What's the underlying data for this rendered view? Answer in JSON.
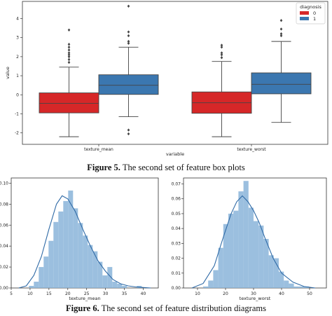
{
  "figures": [
    {
      "caption_label": "Figure 5.",
      "caption_text": "The second set of feature box plots",
      "chart_data": {
        "type": "boxplot",
        "title": "",
        "xlabel": "variable",
        "ylabel": "value",
        "ylim": [
          -2.6,
          4.9
        ],
        "yticks": [
          -2,
          -1,
          0,
          1,
          2,
          3,
          4
        ],
        "categories": [
          "texture_mean",
          "texture_worst"
        ],
        "legend": {
          "title": "diagnosis",
          "placement": "top-right",
          "entries": [
            "0",
            "1"
          ]
        },
        "series": [
          {
            "name": "0",
            "color": "#d62728",
            "boxes": [
              {
                "category": "texture_mean",
                "whisker_low": -2.2,
                "q1": -0.95,
                "median": -0.45,
                "q3": 0.1,
                "whisker_high": 1.45,
                "outliers": [
                  1.7,
                  1.85,
                  2.0,
                  2.1,
                  2.2,
                  2.35,
                  2.5,
                  2.65,
                  3.4
                ]
              },
              {
                "category": "texture_worst",
                "whisker_low": -2.2,
                "q1": -0.97,
                "median": -0.42,
                "q3": 0.15,
                "whisker_high": 1.75,
                "outliers": [
                  1.95,
                  2.1,
                  2.2,
                  2.5,
                  2.6
                ]
              }
            ]
          },
          {
            "name": "1",
            "color": "#3b77b0",
            "boxes": [
              {
                "category": "texture_mean",
                "whisker_low": -1.15,
                "q1": 0.02,
                "median": 0.5,
                "q3": 1.05,
                "whisker_high": 2.5,
                "outliers": [
                  -1.85,
                  -2.05,
                  2.7,
                  2.8,
                  3.1,
                  3.3,
                  4.65
                ]
              },
              {
                "category": "texture_worst",
                "whisker_low": -1.45,
                "q1": 0.05,
                "median": 0.55,
                "q3": 1.15,
                "whisker_high": 2.8,
                "outliers": [
                  3.1,
                  3.2,
                  3.45,
                  3.9
                ]
              }
            ]
          }
        ]
      }
    },
    {
      "caption_label": "Figure 6.",
      "caption_text": "The second set of feature distribution diagrams",
      "chart_data": [
        {
          "type": "bar",
          "title": "",
          "xlabel": "texture_mean",
          "ylabel": "",
          "color": "#8ab4d9",
          "xlim": [
            5,
            44
          ],
          "xticks": [
            5,
            10,
            15,
            20,
            25,
            30,
            35,
            40
          ],
          "ylim": [
            0,
            0.105
          ],
          "yticks": [
            0.0,
            0.02,
            0.04,
            0.06,
            0.08,
            0.1
          ],
          "ytick_labels": [
            "0.00",
            "0.02",
            "0.04",
            "0.06",
            "0.08",
            "0.10"
          ],
          "bin_edges": [
            9.7,
            11.0,
            12.3,
            13.6,
            14.9,
            16.2,
            17.5,
            18.8,
            20.1,
            21.4,
            22.7,
            24.0,
            25.3,
            26.6,
            27.9,
            29.2,
            30.5,
            31.8,
            33.1,
            34.4,
            35.7,
            37.0,
            38.3,
            39.6
          ],
          "density": [
            0.002,
            0.006,
            0.02,
            0.03,
            0.045,
            0.063,
            0.073,
            0.083,
            0.093,
            0.076,
            0.062,
            0.05,
            0.041,
            0.035,
            0.025,
            0.012,
            0.02,
            0.006,
            0.004,
            0.002,
            0.0,
            0.0,
            0.002
          ],
          "kde_x": [
            7,
            9,
            11,
            13,
            15,
            17,
            18.5,
            20,
            22,
            24,
            26,
            28,
            30,
            32,
            34,
            36,
            38,
            40,
            42
          ],
          "kde_y": [
            0.0,
            0.002,
            0.012,
            0.03,
            0.056,
            0.08,
            0.088,
            0.085,
            0.073,
            0.056,
            0.04,
            0.026,
            0.016,
            0.008,
            0.004,
            0.002,
            0.001,
            0.0005,
            0.0
          ]
        },
        {
          "type": "bar",
          "title": "",
          "xlabel": "texture_worst",
          "ylabel": "",
          "color": "#8ab4d9",
          "xlim": [
            5,
            56
          ],
          "xticks": [
            10,
            20,
            30,
            40,
            50
          ],
          "ylim": [
            0,
            0.074
          ],
          "yticks": [
            0.0,
            0.01,
            0.02,
            0.03,
            0.04,
            0.05,
            0.06,
            0.07
          ],
          "ytick_labels": [
            "0.00",
            "0.01",
            "0.02",
            "0.03",
            "0.04",
            "0.05",
            "0.06",
            "0.07"
          ],
          "bin_edges": [
            12.0,
            13.8,
            15.6,
            17.4,
            19.2,
            21.0,
            22.8,
            24.6,
            26.4,
            28.2,
            30.0,
            31.8,
            33.6,
            35.4,
            37.2,
            39.0,
            40.8,
            42.6,
            44.4,
            46.2,
            48.0,
            49.8
          ],
          "density": [
            0.001,
            0.005,
            0.012,
            0.027,
            0.043,
            0.05,
            0.052,
            0.065,
            0.072,
            0.054,
            0.045,
            0.042,
            0.033,
            0.022,
            0.02,
            0.011,
            0.005,
            0.003,
            0.001,
            0.001,
            0.001
          ],
          "kde_x": [
            8,
            12,
            16,
            19,
            22,
            24,
            26,
            28,
            30,
            32,
            34,
            37,
            40,
            44,
            48,
            52
          ],
          "kde_y": [
            0.0,
            0.003,
            0.015,
            0.033,
            0.05,
            0.058,
            0.062,
            0.058,
            0.052,
            0.044,
            0.034,
            0.02,
            0.01,
            0.004,
            0.001,
            0.0
          ]
        }
      ]
    }
  ]
}
